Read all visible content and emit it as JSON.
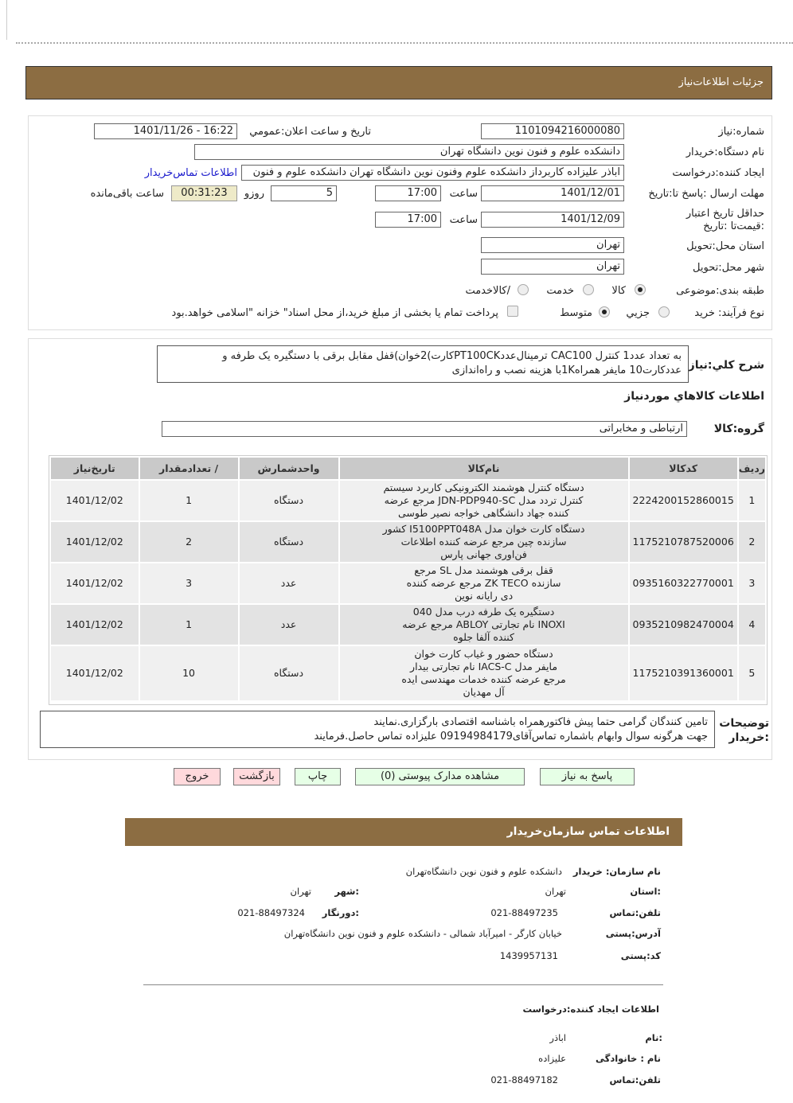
{
  "header": {
    "title": "جزئیات  اطلاعات‌نیاز",
    "brand_color": "#8c6d42"
  },
  "form": {
    "need_number_label": "شماره‌:نیاز",
    "need_number": "1101094216000080",
    "announce_label": "تاریخ و ساعت اعلان:عمومي",
    "announce_value": "1401/11/26 - 16:22",
    "buyer_label": "نام دستگاه:خریدار",
    "buyer": "دانشکده علوم و فنون نوین دانشگاه تهران",
    "creator_label": "ایجاد کننده:درخواست",
    "creator": "اباذر علیزاده کاربرداز دانشکده علوم وفنون نوین دانشگاه تهران دانشکده علوم و فنون",
    "contact_link": "اطلاعات تماس‌خریدار",
    "deadline_label": "مهلت ارسال :پاسخ تا:تاریخ",
    "deadline_date": "1401/12/01",
    "time_label": "ساعت",
    "deadline_time": "17:00",
    "days": "5",
    "days_label": "روزو",
    "remaining": "00:31:23",
    "remaining_label": "ساعت باقی‌مانده",
    "validity_label": "حداقل تاریخ اعتبار :قیمت‌تا :تاریخ",
    "validity_date": "1401/12/09",
    "validity_time": "17:00",
    "province_label": "استان محل:تحویل",
    "province": "تهران",
    "city_label": "شهر محل:تحویل",
    "city": "تهران",
    "category_label": "طبقه بندی:موضوعی",
    "category_options": [
      "کالا",
      "خدمت",
      "/کالاخدمت"
    ],
    "category_selected": "کالا",
    "process_label": "نوع فرآیند: خرید",
    "process_options": [
      "جزيي",
      "متوسط"
    ],
    "process_selected": "متوسط",
    "payment_note": "پرداخت تمام یا بخشی از مبلغ خرید،از محل اسناد\" خزانه \"اسلامی خواهد.بود"
  },
  "summary": {
    "label": "شرح کلي:نیاز",
    "text1": "به تعداد عدد1 کنترل CAC100 ترمینال‌عددPT100CKکارت)2خوان)قفل مقابل برقی با دستگیره یک طرفه و",
    "text2": "عددکارت10 مایفر همراه1Kبا هزینه نصب و راه‌اندازی"
  },
  "goods": {
    "title": "اطلاعات کالاهاي موردنیاز",
    "group_label": "گروه:کالا",
    "group": "ارتباطی و مخابراتی"
  },
  "table": {
    "headers": [
      "ردیف",
      "کدکالا",
      "نام‌کالا",
      "واحدشمارش",
      "/ تعدادمقدار",
      "تاریخ‌نیاز"
    ],
    "rows": [
      {
        "n": "1",
        "code": "2224200152860015",
        "name": [
          "دستگاه کنترل هوشمند الکترونیکی کاربرد سیستم",
          "کنترل تردد مدل JDN-PDP940-SC مرجع عرضه",
          "کننده جهاد دانشگاهی خواجه نصیر طوسی"
        ],
        "unit": "دستگاه",
        "qty": "1",
        "date": "1401/12/02"
      },
      {
        "n": "2",
        "code": "1175210787520006",
        "name": [
          "دستگاه کارت خوان مدل I5100PPT048A کشور",
          "سازنده چین مرجع عرضه کننده اطلاعات",
          "فن‌اوری جهانی پارس"
        ],
        "unit": "دستگاه",
        "qty": "2",
        "date": "1401/12/02"
      },
      {
        "n": "3",
        "code": "0935160322770001",
        "name": [
          "قفل برقی هوشمند مدل SL مرجع",
          "سازنده ZK TECO مرجع عرضه کننده",
          "دی رایانه نوین"
        ],
        "unit": "عدد",
        "qty": "3",
        "date": "1401/12/02"
      },
      {
        "n": "4",
        "code": "0935210982470004",
        "name": [
          "دستگیره یک طرفه درب مدل 040",
          "INOXI نام تجارتی ABLOY مرجع عرضه",
          "کننده آلفا جلوه"
        ],
        "unit": "عدد",
        "qty": "1",
        "date": "1401/12/02"
      },
      {
        "n": "5",
        "code": "1175210391360001",
        "name": [
          "دستگاه حضور و غیاب کارت خوان",
          "مایفر مدل IACS-C نام تجارتی بیدار",
          "مرجع عرضه کننده خدمات مهندسی ایده",
          "آل مهدیان"
        ],
        "unit": "دستگاه",
        "qty": "10",
        "date": "1401/12/02"
      }
    ]
  },
  "notes": {
    "label1": "توضیحات",
    "label2": ":خریدار",
    "line1": "تامین کنندگان گرامی حتما پیش فاکتورهمراه باشناسه اقتصادی بارگزاری.نمایند",
    "line2": "جهت هرگونه سوال وابهام باشماره تماس‌آقای09194984179 علیزاده تماس حاصل.فرمایند"
  },
  "buttons": {
    "reply": "پاسخ به نیاز",
    "docs": "مشاهده مدارک پیوستی (0)",
    "print": "چاپ",
    "back": "بازگشت",
    "exit": "خروج"
  },
  "contact": {
    "title": "اطلاعات  تماس سازمان‌خریدار",
    "org_label": "نام سازمان: خریدار",
    "org": "دانشکده علوم و فنون نوین دانشگاه‌تهران",
    "province_label": ":استان",
    "province": "تهران",
    "city_label": ":شهر",
    "city": "تهران",
    "phone_label": "تلفن:تماس",
    "phone": "021-88497235",
    "fax_label": ":دورنگار",
    "fax": "021-88497324",
    "address_label": "آدرس:پستی",
    "address": "خیابان کارگر - امیرآباد شمالی - دانشکده علوم و فنون نوین دانشگاه‌تهران",
    "postal_label": "کد:پستی",
    "postal": "1439957131"
  },
  "creator_info": {
    "title": "اطلاعات  ایجاد کننده:درخواست",
    "name_label": ":نام",
    "name": "اباذر",
    "family_label": "نام : خانوادگی",
    "family": "علیزاده",
    "phone_label": "تلفن:تماس",
    "phone": "021-88497182"
  }
}
